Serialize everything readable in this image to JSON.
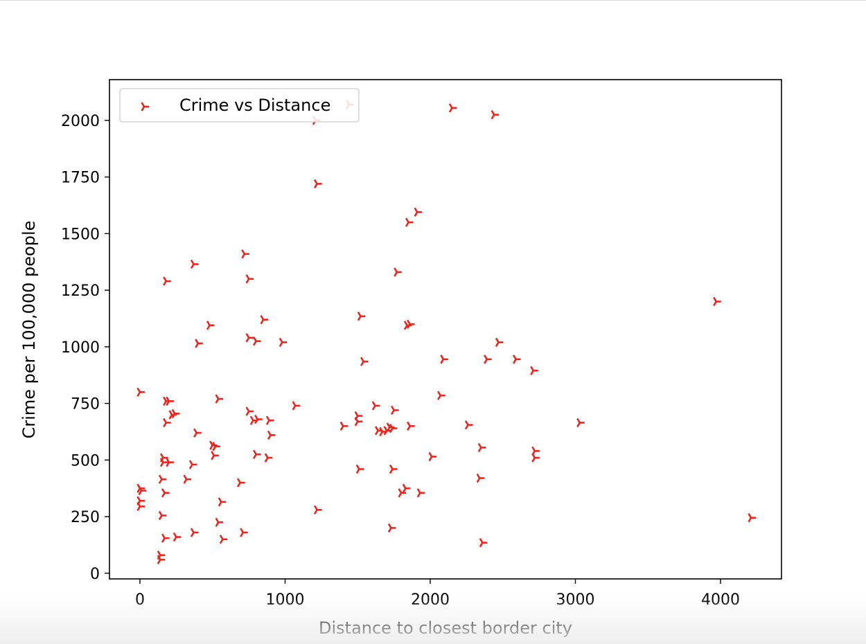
{
  "chart_data": {
    "type": "scatter",
    "title": "",
    "xlabel": "Distance to closest border city",
    "ylabel": "Crime per 100,000 people",
    "xlim": [
      -210,
      4420
    ],
    "ylim": [
      -25,
      2180
    ],
    "xticks": [
      0,
      1000,
      2000,
      3000,
      4000
    ],
    "yticks": [
      0,
      250,
      500,
      750,
      1000,
      1250,
      1500,
      1750,
      2000
    ],
    "grid": false,
    "legend": {
      "position": "top-left",
      "entries": [
        "Crime vs Distance"
      ]
    },
    "series": [
      {
        "name": "Crime vs Distance",
        "color": "#e8261f",
        "marker": "tri_right",
        "points": [
          [
            0,
            800
          ],
          [
            0,
            375
          ],
          [
            10,
            365
          ],
          [
            0,
            320
          ],
          [
            0,
            295
          ],
          [
            150,
            255
          ],
          [
            140,
            80
          ],
          [
            140,
            60
          ],
          [
            150,
            415
          ],
          [
            160,
            510
          ],
          [
            160,
            490
          ],
          [
            170,
            355
          ],
          [
            170,
            155
          ],
          [
            180,
            665
          ],
          [
            180,
            760
          ],
          [
            180,
            1290
          ],
          [
            200,
            760
          ],
          [
            200,
            490
          ],
          [
            220,
            700
          ],
          [
            240,
            705
          ],
          [
            250,
            160
          ],
          [
            320,
            415
          ],
          [
            360,
            480
          ],
          [
            370,
            180
          ],
          [
            370,
            1365
          ],
          [
            390,
            620
          ],
          [
            400,
            1015
          ],
          [
            480,
            1095
          ],
          [
            500,
            565
          ],
          [
            510,
            520
          ],
          [
            520,
            560
          ],
          [
            540,
            225
          ],
          [
            540,
            770
          ],
          [
            560,
            315
          ],
          [
            570,
            150
          ],
          [
            690,
            400
          ],
          [
            710,
            180
          ],
          [
            720,
            1410
          ],
          [
            750,
            715
          ],
          [
            750,
            1040
          ],
          [
            750,
            1300
          ],
          [
            780,
            675
          ],
          [
            800,
            1025
          ],
          [
            800,
            525
          ],
          [
            810,
            680
          ],
          [
            850,
            1120
          ],
          [
            880,
            510
          ],
          [
            890,
            675
          ],
          [
            900,
            610
          ],
          [
            980,
            1020
          ],
          [
            1070,
            740
          ],
          [
            1210,
            2000
          ],
          [
            1220,
            1720
          ],
          [
            1220,
            280
          ],
          [
            1400,
            650
          ],
          [
            1440,
            2070
          ],
          [
            1500,
            695
          ],
          [
            1500,
            670
          ],
          [
            1510,
            460
          ],
          [
            1520,
            1135
          ],
          [
            1540,
            935
          ],
          [
            1620,
            740
          ],
          [
            1640,
            630
          ],
          [
            1670,
            625
          ],
          [
            1700,
            630
          ],
          [
            1720,
            645
          ],
          [
            1740,
            640
          ],
          [
            1730,
            200
          ],
          [
            1750,
            720
          ],
          [
            1740,
            460
          ],
          [
            1770,
            1330
          ],
          [
            1800,
            355
          ],
          [
            1830,
            375
          ],
          [
            1850,
            1550
          ],
          [
            1840,
            1095
          ],
          [
            1860,
            1100
          ],
          [
            1860,
            650
          ],
          [
            1910,
            1595
          ],
          [
            1930,
            355
          ],
          [
            2010,
            515
          ],
          [
            2070,
            785
          ],
          [
            2090,
            945
          ],
          [
            2150,
            2055
          ],
          [
            2260,
            655
          ],
          [
            2340,
            420
          ],
          [
            2350,
            555
          ],
          [
            2360,
            135
          ],
          [
            2390,
            945
          ],
          [
            2440,
            2025
          ],
          [
            2470,
            1020
          ],
          [
            2590,
            945
          ],
          [
            2710,
            895
          ],
          [
            2720,
            540
          ],
          [
            2720,
            510
          ],
          [
            3030,
            665
          ],
          [
            3970,
            1200
          ],
          [
            4210,
            245
          ]
        ]
      }
    ]
  }
}
